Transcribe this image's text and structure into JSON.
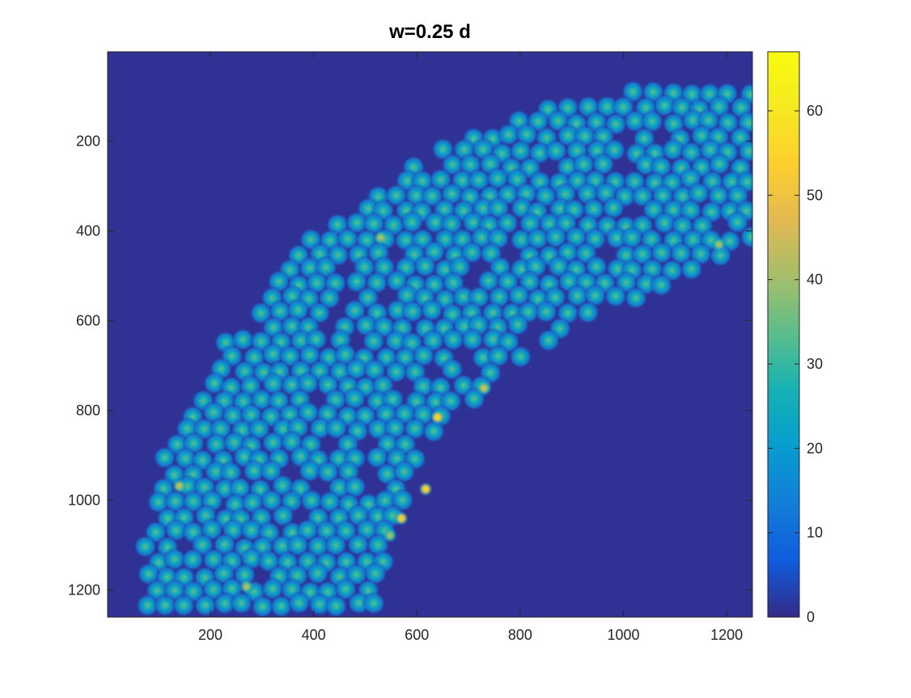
{
  "chart_data": {
    "type": "heatmap",
    "title": "w=0.25 d",
    "xlabel": "",
    "ylabel": "",
    "xlim": [
      1,
      1250
    ],
    "ylim": [
      1,
      1260
    ],
    "y_reversed": true,
    "xticks": [
      200,
      400,
      600,
      800,
      1000,
      1200
    ],
    "yticks": [
      200,
      400,
      600,
      800,
      1000,
      1200
    ],
    "colormap": "parula",
    "colorbar": {
      "clim": [
        0,
        67
      ],
      "ticks": [
        0,
        10,
        20,
        30,
        40,
        50,
        60
      ]
    },
    "background_value": 1,
    "band": {
      "description": "arched band of dense circular spots (value ~28-40)",
      "inner_edge": [
        [
          520,
          1255
        ],
        [
          555,
          1050
        ],
        [
          620,
          880
        ],
        [
          760,
          720
        ],
        [
          930,
          590
        ],
        [
          1100,
          510
        ],
        [
          1250,
          430
        ]
      ],
      "outer_edge": [
        [
          60,
          1230
        ],
        [
          110,
          900
        ],
        [
          230,
          640
        ],
        [
          380,
          430
        ],
        [
          580,
          260
        ],
        [
          800,
          140
        ],
        [
          1000,
          80
        ],
        [
          1250,
          60
        ]
      ],
      "spot_value": 34,
      "spot_spacing": 37
    },
    "hotspots": [
      {
        "x": 640,
        "y": 815,
        "value": 60
      },
      {
        "x": 617,
        "y": 975,
        "value": 60
      },
      {
        "x": 570,
        "y": 1040,
        "value": 58
      },
      {
        "x": 730,
        "y": 750,
        "value": 50
      },
      {
        "x": 140,
        "y": 968,
        "value": 48
      },
      {
        "x": 530,
        "y": 415,
        "value": 46
      },
      {
        "x": 270,
        "y": 1192,
        "value": 46
      },
      {
        "x": 1185,
        "y": 430,
        "value": 45
      },
      {
        "x": 548,
        "y": 1078,
        "value": 44
      }
    ]
  }
}
